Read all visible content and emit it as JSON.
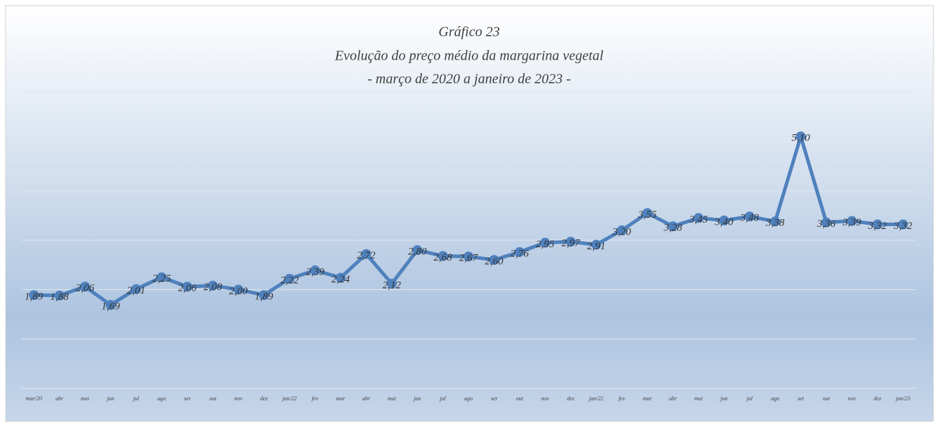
{
  "chart_data": {
    "type": "line",
    "title": [
      "Gráfico 23",
      "Evolução do preço médio da margarina vegetal",
      "- março de 2020 a janeiro de 2023 -"
    ],
    "categories": [
      "mar/20",
      "abr",
      "mai",
      "jun",
      "jul",
      "ago",
      "set",
      "out",
      "nov",
      "dez",
      "jan/22",
      "fev",
      "mar",
      "abr",
      "mai",
      "jun",
      "jul",
      "ago",
      "set",
      "out",
      "nov",
      "dez",
      "jan/22",
      "fev",
      "mar",
      "abr",
      "mai",
      "jun",
      "jul",
      "ago",
      "set",
      "out",
      "nov",
      "dez",
      "jan/23"
    ],
    "series": [
      {
        "color": "#4f81bd",
        "values": [
          1.89,
          1.88,
          2.06,
          1.69,
          2.01,
          2.25,
          2.06,
          2.08,
          2.0,
          1.89,
          2.22,
          2.39,
          2.24,
          2.72,
          2.12,
          2.8,
          2.68,
          2.67,
          2.6,
          2.76,
          2.95,
          2.97,
          2.91,
          3.2,
          3.55,
          3.28,
          3.45,
          3.4,
          3.48,
          3.38,
          5.1,
          3.36,
          3.39,
          3.32,
          3.32
        ],
        "value_labels": [
          "1,89",
          "1,88",
          "2,06",
          "1,69",
          "2,01",
          "2,25",
          "2,06",
          "2,08",
          "2,00",
          "1,89",
          "2,22",
          "2,39",
          "2,24",
          "2,72",
          "2,12",
          "2,80",
          "2,68",
          "2,67",
          "2,60",
          "2,76",
          "2,95",
          "2,97",
          "2,91",
          "3,20",
          "3,55",
          "3,28",
          "3,45",
          "3,40",
          "3,48",
          "3,38",
          "5,10",
          "3,36",
          "3,39",
          "3,32",
          "3,32"
        ]
      }
    ],
    "ylim": [
      0,
      6
    ],
    "yticks": [
      0,
      1,
      2,
      3,
      4,
      5,
      6
    ],
    "grid": true
  }
}
